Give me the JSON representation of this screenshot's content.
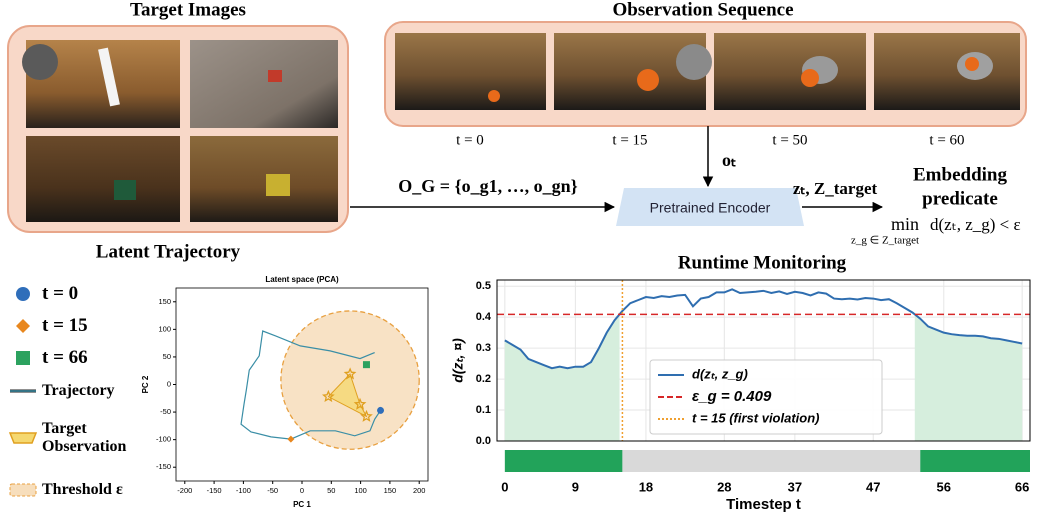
{
  "target_images": {
    "title": "Target Images"
  },
  "observation_sequence": {
    "title": "Observation Sequence",
    "frames": [
      "t = 0",
      "t = 15",
      "t = 50",
      "t = 60"
    ]
  },
  "pipeline": {
    "observation_label": "oₜ",
    "goal_set": "O_G = {o_g1, …, o_gn}",
    "encoder": "Pretrained Encoder",
    "encoder_output": "zₜ, Z_target",
    "predicate_title_1": "Embedding",
    "predicate_title_2": "predicate",
    "predicate_op": "min",
    "predicate_sub": "z_g ∈ Z_target",
    "predicate_expr": "d(zₜ, z_g) < ε"
  },
  "section_titles": {
    "latent": "Latent Trajectory",
    "runtime": "Runtime Monitoring"
  },
  "chart_data": [
    {
      "type": "scatter",
      "title": "Latent space (PCA)",
      "x_label": "PC 1",
      "y_label": "PC 2",
      "xlim": [
        -215,
        215
      ],
      "ylim": [
        -175,
        175
      ],
      "xticks": [
        -200,
        -150,
        -100,
        -50,
        0,
        50,
        100,
        150,
        200
      ],
      "yticks": [
        -150,
        -100,
        -50,
        0,
        50,
        100,
        150
      ],
      "trajectory": {
        "name": "Trajectory",
        "color": "#3a8ea6",
        "x": [
          134,
          124,
          116,
          90,
          57,
          14,
          -19,
          -53,
          -87,
          -104,
          -99,
          -95,
          -90,
          -73,
          -67,
          -45,
          -3,
          48,
          99,
          124
        ],
        "y": [
          -47,
          -63,
          -84,
          -93,
          -84,
          -84,
          -99,
          -95,
          -86,
          -72,
          -36,
          -10,
          26,
          52,
          97,
          88,
          70,
          61,
          47,
          58
        ]
      },
      "points": [
        {
          "name": "t = 0",
          "marker": "circle",
          "color": "#2f6eba",
          "x": 134,
          "y": -47
        },
        {
          "name": "t = 15",
          "marker": "diamond",
          "color": "#e8871e",
          "x": -19,
          "y": -99
        },
        {
          "name": "t = 66",
          "marker": "square",
          "color": "#2ca25f",
          "x": 110,
          "y": 36
        }
      ],
      "target": {
        "name": "Target Observation",
        "color": "#e0a020",
        "x": [
          82,
          45,
          110,
          99
        ],
        "y": [
          19,
          -22,
          -58,
          -36
        ]
      },
      "threshold": {
        "name": "Threshold ε",
        "color": "#e8a040",
        "center_x": 82,
        "center_y": 8,
        "radius": 118
      }
    },
    {
      "type": "line",
      "x_label": "Timestep t",
      "y_label": "d(zₜ, ¤)",
      "xlim": [
        -1,
        67
      ],
      "ylim": [
        0,
        0.52
      ],
      "xticks": [
        0,
        9,
        18,
        28,
        37,
        47,
        56,
        66
      ],
      "yticks": [
        {
          "value": 0,
          "label": "0.0"
        },
        0.1,
        0.2,
        0.3,
        0.4,
        0.5
      ],
      "grid": true,
      "x": [
        0,
        1,
        2,
        3,
        4,
        5,
        6,
        7,
        8,
        9,
        10,
        11,
        12,
        13,
        14,
        15,
        16,
        17,
        18,
        19,
        20,
        21,
        22,
        23,
        24,
        25,
        26,
        27,
        28,
        29,
        30,
        31,
        32,
        33,
        34,
        35,
        36,
        37,
        38,
        39,
        40,
        41,
        42,
        43,
        44,
        45,
        46,
        47,
        48,
        49,
        50,
        51,
        52,
        53,
        54,
        55,
        56,
        57,
        58,
        59,
        60,
        61,
        62,
        63,
        64,
        65,
        66
      ],
      "series": [
        {
          "name": "d(zₜ, z_g)",
          "color": "#2f6eb0",
          "values": [
            0.325,
            0.31,
            0.295,
            0.265,
            0.255,
            0.245,
            0.235,
            0.24,
            0.235,
            0.24,
            0.24,
            0.255,
            0.3,
            0.35,
            0.39,
            0.42,
            0.445,
            0.455,
            0.465,
            0.462,
            0.468,
            0.465,
            0.47,
            0.472,
            0.435,
            0.46,
            0.465,
            0.48,
            0.48,
            0.49,
            0.478,
            0.48,
            0.482,
            0.485,
            0.478,
            0.483,
            0.475,
            0.482,
            0.478,
            0.47,
            0.48,
            0.476,
            0.46,
            0.458,
            0.46,
            0.457,
            0.462,
            0.46,
            0.455,
            0.458,
            0.445,
            0.43,
            0.415,
            0.395,
            0.37,
            0.36,
            0.35,
            0.345,
            0.342,
            0.34,
            0.34,
            0.338,
            0.332,
            0.33,
            0.325,
            0.32,
            0.315
          ]
        }
      ],
      "hlines": [
        {
          "name": "ε_g = 0.409",
          "value": 0.409,
          "color": "#d62728"
        }
      ],
      "vlines": [
        {
          "name": "t = 15 (first violation)",
          "value": 15,
          "color": "#f0a030"
        }
      ],
      "safe_fill": "#d6eedd",
      "status": [
        {
          "start": 0,
          "end": 15,
          "color": "#22a35a"
        },
        {
          "start": 15,
          "end": 53,
          "color": "#d9d9d9"
        },
        {
          "start": 53,
          "end": 67,
          "color": "#22a35a"
        }
      ]
    }
  ]
}
